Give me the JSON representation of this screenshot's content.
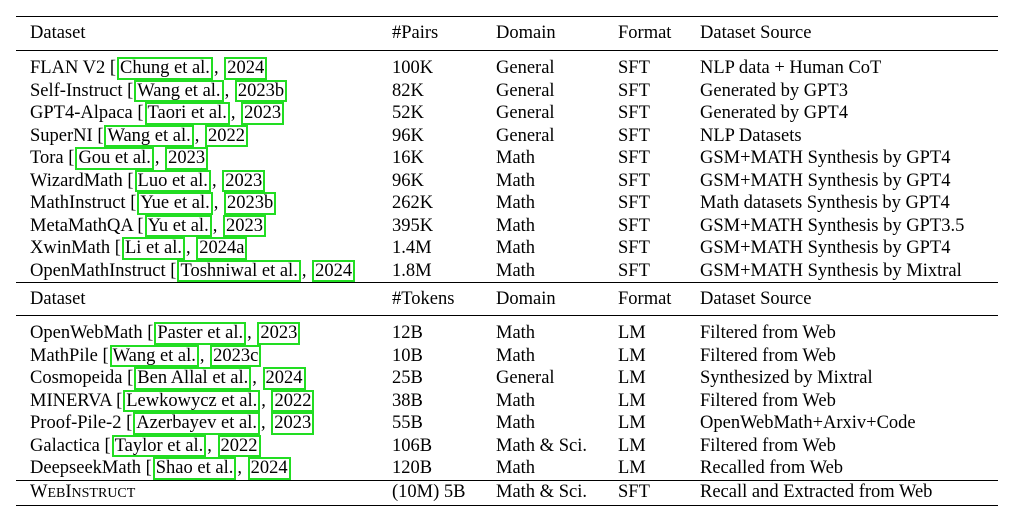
{
  "header_1": {
    "dataset": "Dataset",
    "count": "#Pairs",
    "domain": "Domain",
    "format": "Format",
    "source": "Dataset Source"
  },
  "sft_rows": [
    {
      "name": "FLAN V2",
      "cite_author": "Chung et al.",
      "cite_year": "2024",
      "count": "100K",
      "domain": "General",
      "format": "SFT",
      "source": "NLP data + Human CoT"
    },
    {
      "name": "Self-Instruct",
      "cite_author": "Wang et al.",
      "cite_year": "2023b",
      "count": "82K",
      "domain": "General",
      "format": "SFT",
      "source": "Generated by GPT3"
    },
    {
      "name": "GPT4-Alpaca",
      "cite_author": "Taori et al.",
      "cite_year": "2023",
      "count": "52K",
      "domain": "General",
      "format": "SFT",
      "source": "Generated by GPT4"
    },
    {
      "name": "SuperNI",
      "cite_author": "Wang et al.",
      "cite_year": "2022",
      "count": "96K",
      "domain": "General",
      "format": "SFT",
      "source": "NLP Datasets"
    },
    {
      "name": "Tora",
      "cite_author": "Gou et al.",
      "cite_year": "2023",
      "count": "16K",
      "domain": "Math",
      "format": "SFT",
      "source": "GSM+MATH Synthesis by GPT4"
    },
    {
      "name": "WizardMath",
      "cite_author": "Luo et al.",
      "cite_year": "2023",
      "count": "96K",
      "domain": "Math",
      "format": "SFT",
      "source": "GSM+MATH Synthesis by GPT4"
    },
    {
      "name": "MathInstruct",
      "cite_author": "Yue et al.",
      "cite_year": "2023b",
      "count": "262K",
      "domain": "Math",
      "format": "SFT",
      "source": "Math datasets Synthesis by GPT4"
    },
    {
      "name": "MetaMathQA",
      "cite_author": "Yu et al.",
      "cite_year": "2023",
      "count": "395K",
      "domain": "Math",
      "format": "SFT",
      "source": "GSM+MATH Synthesis by GPT3.5"
    },
    {
      "name": "XwinMath",
      "cite_author": "Li et al.",
      "cite_year": "2024a",
      "count": "1.4M",
      "domain": "Math",
      "format": "SFT",
      "source": "GSM+MATH Synthesis by GPT4"
    },
    {
      "name": "OpenMathInstruct",
      "cite_author": "Toshniwal et al.",
      "cite_year": "2024",
      "count": "1.8M",
      "domain": "Math",
      "format": "SFT",
      "source": "GSM+MATH Synthesis by Mixtral"
    }
  ],
  "header_2": {
    "dataset": "Dataset",
    "count": "#Tokens",
    "domain": "Domain",
    "format": "Format",
    "source": "Dataset Source"
  },
  "lm_rows": [
    {
      "name": "OpenWebMath",
      "cite_author": "Paster et al.",
      "cite_year": "2023",
      "count": "12B",
      "domain": "Math",
      "format": "LM",
      "source": "Filtered from Web"
    },
    {
      "name": "MathPile",
      "cite_author": "Wang et al.",
      "cite_year": "2023c",
      "count": "10B",
      "domain": "Math",
      "format": "LM",
      "source": "Filtered from Web"
    },
    {
      "name": "Cosmopeida",
      "cite_author": "Ben Allal et al.",
      "cite_year": "2024",
      "count": "25B",
      "domain": "General",
      "format": "LM",
      "source": "Synthesized by Mixtral"
    },
    {
      "name": "MINERVA",
      "cite_author": "Lewkowycz et al.",
      "cite_year": "2022",
      "count": "38B",
      "domain": "Math",
      "format": "LM",
      "source": "Filtered from Web"
    },
    {
      "name": "Proof-Pile-2",
      "cite_author": "Azerbayev et al.",
      "cite_year": "2023",
      "count": "55B",
      "domain": "Math",
      "format": "LM",
      "source": "OpenWebMath+Arxiv+Code"
    },
    {
      "name": "Galactica",
      "cite_author": "Taylor et al.",
      "cite_year": "2022",
      "count": "106B",
      "domain": "Math & Sci.",
      "format": "LM",
      "source": "Filtered from Web"
    },
    {
      "name": "DeepseekMath",
      "cite_author": "Shao et al.",
      "cite_year": "2024",
      "count": "120B",
      "domain": "Math",
      "format": "LM",
      "source": "Recalled from Web"
    }
  ],
  "final_row": {
    "name_w": "W",
    "name_eb": "EB",
    "name_i": "I",
    "name_nstruct": "NSTRUCT",
    "count": "(10M) 5B",
    "domain": "Math & Sci.",
    "format": "SFT",
    "source": "Recall and Extracted from Web"
  }
}
